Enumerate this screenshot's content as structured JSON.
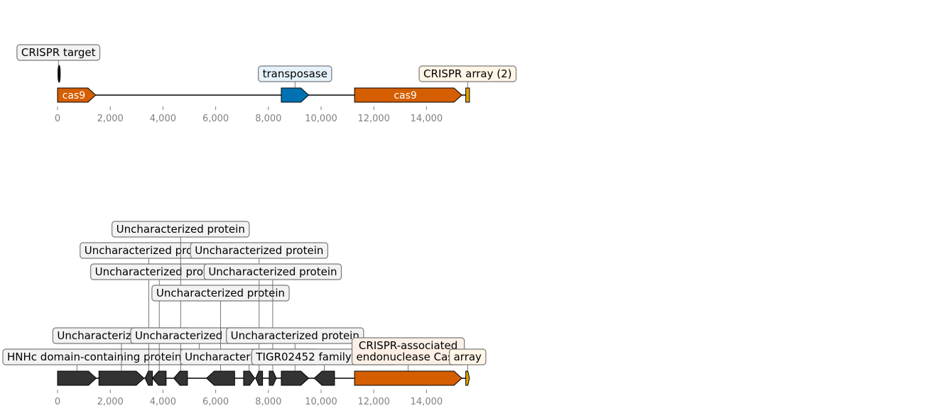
{
  "tracks": [
    {
      "id": "top",
      "sequence_length": 15630,
      "ticks": [
        0,
        2000,
        4000,
        6000,
        8000,
        10000,
        12000,
        14000
      ],
      "tick_labels": [
        "0",
        "2,000",
        "4,000",
        "6,000",
        "8,000",
        "10,000",
        "12,000",
        "14,000"
      ],
      "features": [
        {
          "name": "crispr-target",
          "start": 20,
          "end": 45,
          "strand": 0,
          "shape": "ellipse",
          "color": "#111111",
          "inner_label": "",
          "label": "CRISPR target",
          "label_level": 2,
          "label_bg": "#f2f2f2"
        },
        {
          "name": "cas9-1",
          "start": 0,
          "end": 1450,
          "strand": 1,
          "color": "#d55e00",
          "inner_label": "cas9",
          "label": ""
        },
        {
          "name": "transposase",
          "start": 8490,
          "end": 9530,
          "strand": 1,
          "color": "#0072b2",
          "inner_label": "",
          "label": "transposase",
          "label_level": 1,
          "label_bg": "#e6f2fb"
        },
        {
          "name": "cas9-2",
          "start": 11270,
          "end": 15340,
          "strand": 1,
          "color": "#d55e00",
          "inner_label": "cas9",
          "label": ""
        },
        {
          "name": "crispr-array",
          "start": 15490,
          "end": 15630,
          "strand": 0,
          "color": "#e69f00",
          "inner_label": "",
          "label": "CRISPR array (2)",
          "label_level": 1,
          "label_bg": "#fff6e6"
        }
      ]
    },
    {
      "id": "bottom",
      "sequence_length": 15630,
      "ticks": [
        0,
        2000,
        4000,
        6000,
        8000,
        10000,
        12000,
        14000
      ],
      "tick_labels": [
        "0",
        "2,000",
        "4,000",
        "6,000",
        "8,000",
        "10,000",
        "12,000",
        "14,000"
      ],
      "features": [
        {
          "name": "hnhc-protein",
          "start": 0,
          "end": 1470,
          "strand": 1,
          "row": 0,
          "color": "#333333",
          "label": "HNHc domain-containing protein",
          "label_level": 1,
          "label_bg": "#f2f2f2"
        },
        {
          "name": "uncharacterized-1",
          "start": 1570,
          "end": 3280,
          "strand": 1,
          "row": 0,
          "color": "#333333",
          "label": "Uncharacterized protein",
          "label_level": 2,
          "label_bg": "#f2f2f2"
        },
        {
          "name": "uncharacterized-2",
          "start": 3320,
          "end": 3600,
          "strand": -1,
          "row": 0,
          "color": "#333333",
          "label": "Uncharacterized protein",
          "label_level": 6,
          "label_bg": "#f2f2f2"
        },
        {
          "name": "uncharacterized-3",
          "start": 3600,
          "end": 4120,
          "strand": -1,
          "row": 0,
          "color": "#333333",
          "label": "Uncharacterized protein",
          "label_level": 5,
          "label_bg": "#f2f2f2"
        },
        {
          "name": "uncharacterized-4",
          "start": 4410,
          "end": 4930,
          "strand": -1,
          "row": 0,
          "color": "#333333",
          "label": "Uncharacterized protein",
          "label_level": 7,
          "label_bg": "#f2f2f2"
        },
        {
          "name": "uncharacterized-5",
          "start": 5110,
          "end": 5650,
          "strand": -1,
          "row": 1,
          "color": "#333333",
          "label": "Uncharacterized protein",
          "label_level": 2,
          "label_bg": "#f2f2f2"
        },
        {
          "name": "uncharacterized-6",
          "start": 5650,
          "end": 6720,
          "strand": -1,
          "row": 0,
          "color": "#333333",
          "label": "Uncharacterized protein",
          "label_level": 4,
          "label_bg": "#f2f2f2"
        },
        {
          "name": "uncharacterized-7",
          "start": 7060,
          "end": 7480,
          "strand": 1,
          "row": 0,
          "color": "#333333",
          "label": "Uncharacterized protein",
          "label_level": 1,
          "label_bg": "#f2f2f2"
        },
        {
          "name": "uncharacterized-8",
          "start": 7520,
          "end": 7780,
          "strand": -1,
          "row": 0,
          "color": "#333333",
          "label": "Uncharacterized protein",
          "label_level": 6,
          "label_bg": "#f2f2f2"
        },
        {
          "name": "uncharacterized-9",
          "start": 8030,
          "end": 8300,
          "strand": 1,
          "row": 0,
          "color": "#333333",
          "label": "Uncharacterized protein",
          "label_level": 5,
          "label_bg": "#f2f2f2"
        },
        {
          "name": "uncharacterized-10",
          "start": 8490,
          "end": 9530,
          "strand": 1,
          "row": 0,
          "color": "#333333",
          "label": "Uncharacterized protein",
          "label_level": 2,
          "label_bg": "#f2f2f2"
        },
        {
          "name": "tigr02452-protein",
          "start": 9740,
          "end": 10510,
          "strand": -1,
          "row": 0,
          "color": "#333333",
          "label": "TIGR02452 family protein",
          "label_level": 1,
          "label_bg": "#f2f2f2"
        },
        {
          "name": "crispr-associated-cas9",
          "start": 11270,
          "end": 15340,
          "strand": 1,
          "row": 0,
          "color": "#d55e00",
          "label": "CRISPR-associated endonuclease Cas9",
          "label_lines": [
            "CRISPR-associated",
            "endonuclease Cas9"
          ],
          "label_level": 1,
          "label_bg": "#fcefe6"
        },
        {
          "name": "array",
          "start": 15490,
          "end": 15630,
          "strand": 1,
          "row": 0,
          "color": "#e69f00",
          "label": "array",
          "label_level": 1,
          "label_bg": "#fff6e6"
        }
      ]
    }
  ]
}
